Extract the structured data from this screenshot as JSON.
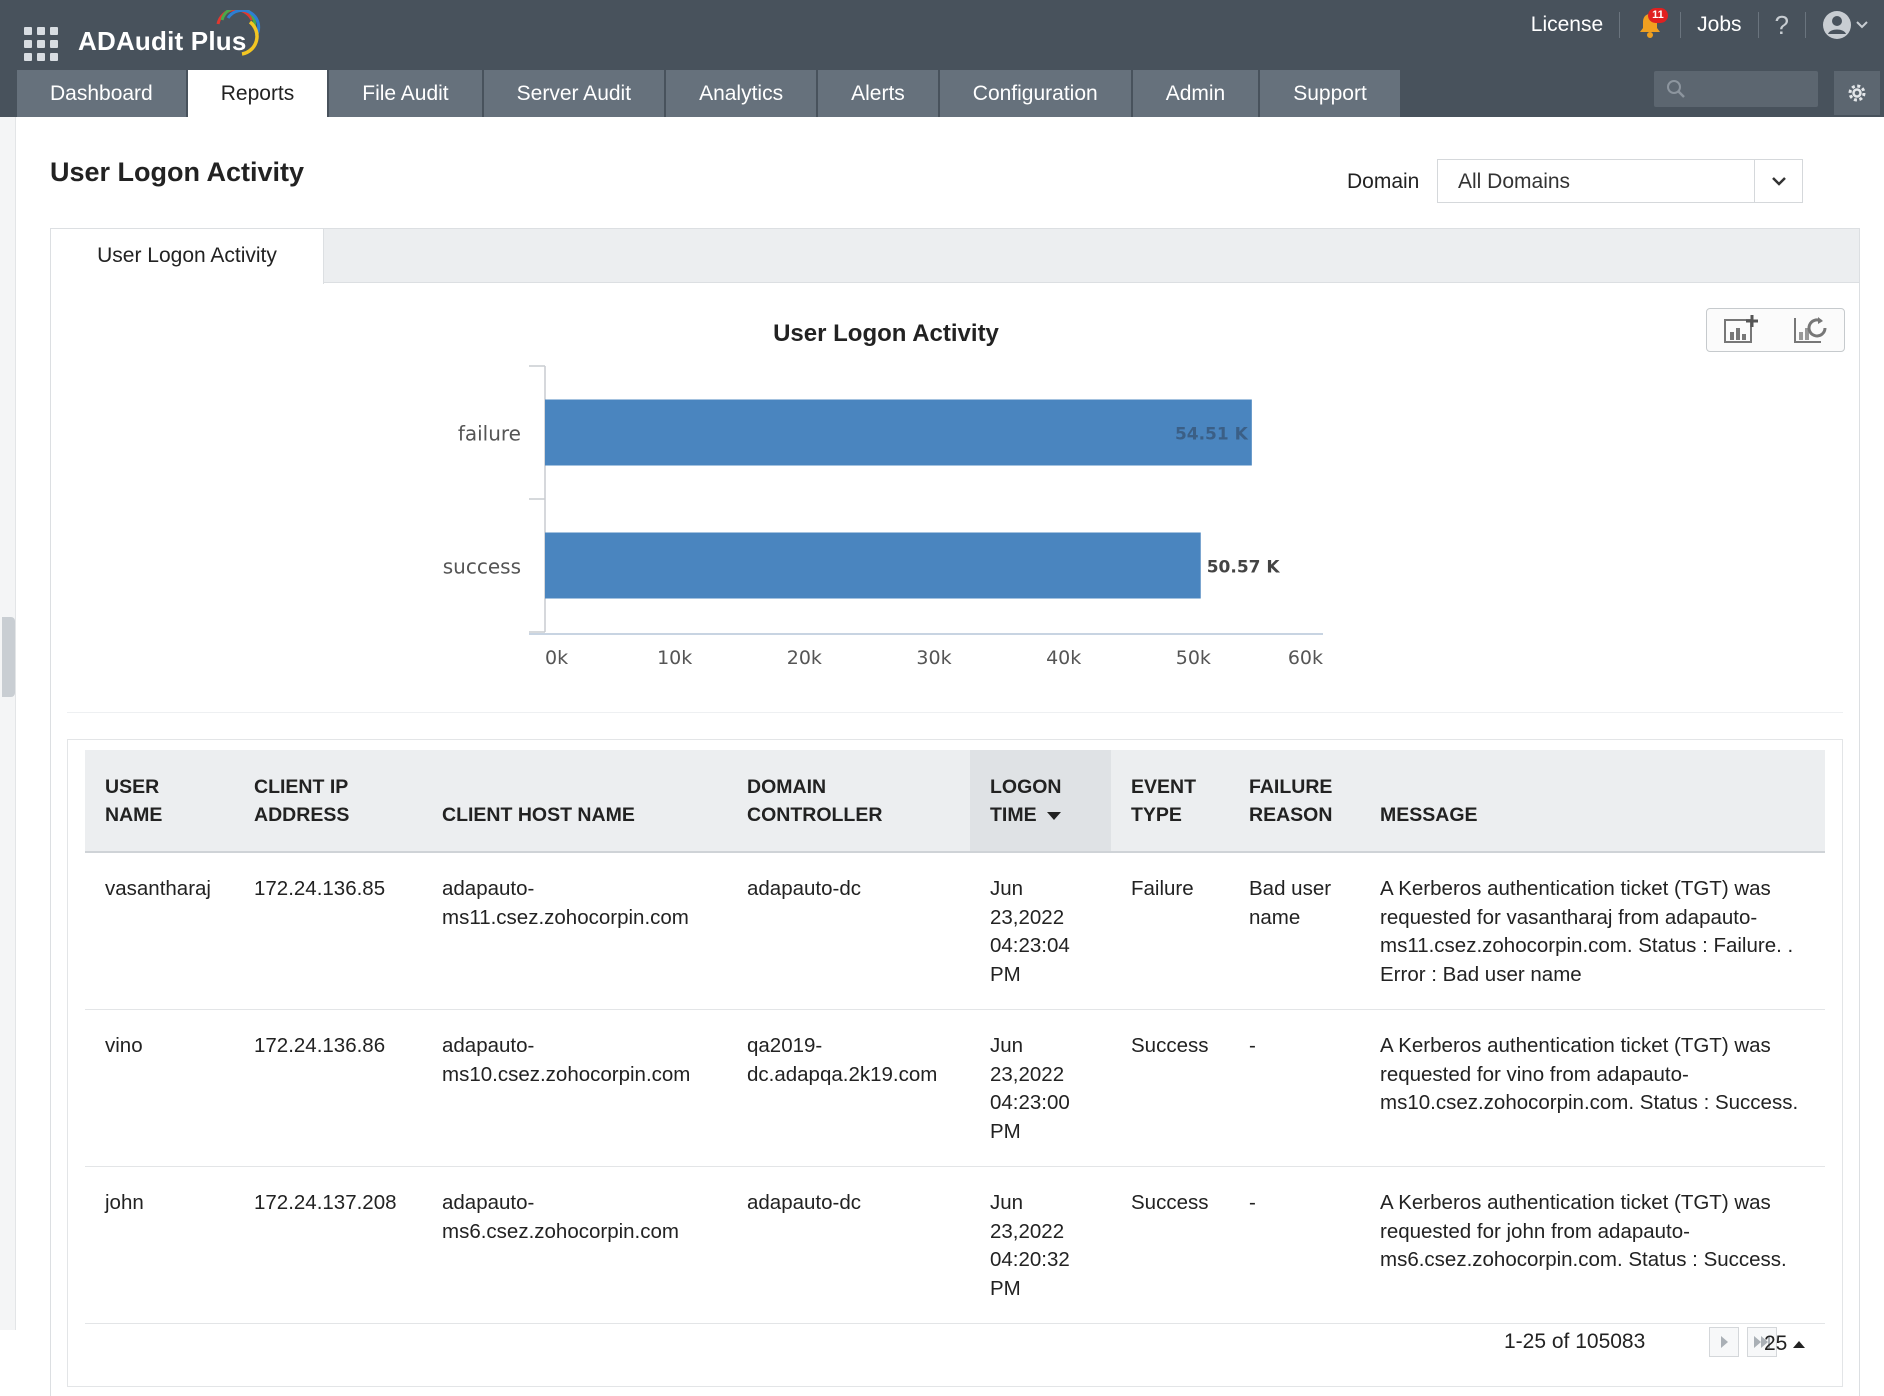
{
  "app": {
    "name": "ADAudit Plus"
  },
  "topbar": {
    "license_label": "License",
    "notification_count": "11",
    "jobs_label": "Jobs",
    "help_label": "?"
  },
  "nav": {
    "tabs": [
      {
        "label": "Dashboard",
        "active": false
      },
      {
        "label": "Reports",
        "active": true
      },
      {
        "label": "File Audit",
        "active": false
      },
      {
        "label": "Server Audit",
        "active": false
      },
      {
        "label": "Analytics",
        "active": false
      },
      {
        "label": "Alerts",
        "active": false
      },
      {
        "label": "Configuration",
        "active": false
      },
      {
        "label": "Admin",
        "active": false
      },
      {
        "label": "Support",
        "active": false
      }
    ],
    "search_placeholder": ""
  },
  "page": {
    "title": "User Logon Activity",
    "domain_label": "Domain",
    "domain_value": "All Domains",
    "report_tab": "User Logon Activity"
  },
  "chart_data": {
    "type": "bar",
    "orientation": "horizontal",
    "title": "User Logon Activity",
    "categories": [
      "failure",
      "success"
    ],
    "values": [
      54510,
      50570
    ],
    "data_labels": [
      "54.51 K",
      "50.57 K"
    ],
    "xlim": [
      0,
      60000
    ],
    "xticks": [
      "0k",
      "10k",
      "20k",
      "30k",
      "40k",
      "50k",
      "60k"
    ],
    "bar_color": "#4a85bf",
    "grid": false
  },
  "table": {
    "columns": [
      {
        "key": "user",
        "label": "USER NAME"
      },
      {
        "key": "ip",
        "label": "CLIENT IP ADDRESS"
      },
      {
        "key": "host",
        "label": "CLIENT HOST NAME"
      },
      {
        "key": "dc",
        "label": "DOMAIN CONTROLLER"
      },
      {
        "key": "time",
        "label": "LOGON TIME",
        "sorted": "desc"
      },
      {
        "key": "event",
        "label": "EVENT TYPE"
      },
      {
        "key": "reason",
        "label": "FAILURE REASON"
      },
      {
        "key": "message",
        "label": "MESSAGE"
      }
    ],
    "rows": [
      {
        "user": "vasantharaj",
        "ip": "172.24.136.85",
        "host": "adapauto-ms11.csez.zohocorpin.com",
        "dc": "adapauto-dc",
        "time": "Jun 23,2022 04:23:04 PM",
        "event": "Failure",
        "reason": "Bad user name",
        "message": "A Kerberos authentication ticket (TGT) was requested for vasantharaj from adapauto-ms11.csez.zohocorpin.com. Status : Failure. . Error : Bad user name"
      },
      {
        "user": "vino",
        "ip": "172.24.136.86",
        "host": "adapauto-ms10.csez.zohocorpin.com",
        "dc": "qa2019-dc.adapqa.2k19.com",
        "time": "Jun 23,2022 04:23:00 PM",
        "event": "Success",
        "reason": "-",
        "message": "A Kerberos authentication ticket (TGT) was requested for vino from adapauto-ms10.csez.zohocorpin.com. Status : Success."
      },
      {
        "user": "john",
        "ip": "172.24.137.208",
        "host": "adapauto-ms6.csez.zohocorpin.com",
        "dc": "adapauto-dc",
        "time": "Jun 23,2022 04:20:32 PM",
        "event": "Success",
        "reason": "-",
        "message": "A Kerberos authentication ticket (TGT) was requested for john from adapauto-ms6.csez.zohocorpin.com. Status : Success."
      }
    ]
  },
  "pager": {
    "range_text": "1-25 of 105083",
    "page_size": "25"
  },
  "colors": {
    "topbar": "#48525c",
    "nav_tab": "#66717c",
    "bar": "#4a85bf"
  }
}
